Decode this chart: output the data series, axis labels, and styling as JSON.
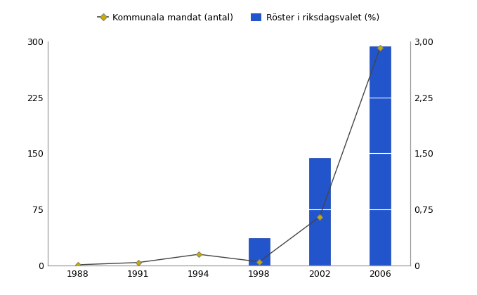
{
  "years": [
    "1988",
    "1991",
    "1994",
    "1998",
    "2002",
    "2006"
  ],
  "bar_values": [
    0.0,
    0.0,
    0.0,
    0.37,
    1.44,
    2.93
  ],
  "line_values": [
    1,
    4,
    15,
    5,
    65,
    291
  ],
  "bar_color": "#2255CC",
  "bar_edge_color": "#1A44AA",
  "line_color": "#444444",
  "marker_color": "#CCAA00",
  "marker_edge_color": "#888866",
  "plot_bg": "#D8D8D8",
  "fig_bg_color": "#FFFFFF",
  "legend_bg": "#FFFFFF",
  "legend_border": "#999999",
  "left_ylim": [
    0,
    300
  ],
  "right_ylim": [
    0,
    3.0
  ],
  "left_yticks": [
    0,
    75,
    150,
    225,
    300
  ],
  "right_yticks": [
    0,
    0.75,
    1.5,
    2.25,
    3.0
  ],
  "right_yticklabels": [
    "0",
    "0,75",
    "1,50",
    "2,25",
    "3,00"
  ],
  "legend_line_label": "Kommunala mandat (antal)",
  "legend_bar_label": "Röster i riksdagsvalet (%)",
  "grid_color": "#BBBBBB",
  "spine_color": "#999999",
  "tick_fontsize": 9,
  "legend_fontsize": 9
}
